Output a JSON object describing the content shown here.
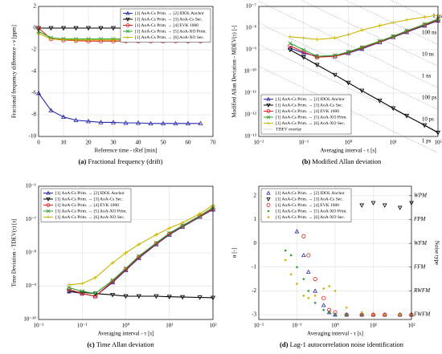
{
  "chart_data": [
    {
      "type": "line",
      "caption_label": "(a)",
      "caption": "Fractional frequency (drift)",
      "xlabel": "Reference time - tRef [min]",
      "ylabel": "Fractional frequency difference - ν [ppm]",
      "xscale": "linear",
      "yscale": "linear",
      "grid": true,
      "legend": "upper right",
      "xlim": [
        0,
        70
      ],
      "xticks": [
        0,
        10,
        20,
        30,
        40,
        50,
        60,
        70
      ],
      "ylim": [
        -10,
        2
      ],
      "yticks": [
        -10,
        -8,
        -6,
        -4,
        -2,
        0,
        2
      ],
      "x": [
        0,
        5,
        10,
        15,
        20,
        25,
        30,
        35,
        40,
        45,
        50,
        55,
        60,
        65
      ],
      "series": [
        {
          "name": "[1] AoA-Cs Prim. → [2] IDOL Anchor",
          "color": "#2a2aa8",
          "marker": "triangle-up",
          "values": [
            -6,
            -7.6,
            -8.2,
            -8.5,
            -8.6,
            -8.7,
            -8.7,
            -8.75,
            -8.75,
            -8.8,
            -8.8,
            -8.8,
            -8.8,
            -8.8
          ]
        },
        {
          "name": "[1] AoA-Cs Prim. → [3] AoA-Cs Sec.",
          "color": "#000000",
          "marker": "triangle-down",
          "values": [
            0,
            0,
            0,
            0,
            0,
            0,
            0,
            0,
            0,
            0,
            0,
            0,
            0,
            0
          ]
        },
        {
          "name": "[1] AoA-Cs Prim. → [4] EVK 1000",
          "color": "#e0201b",
          "marker": "circle",
          "values": [
            0,
            -1,
            -1.1,
            -1.15,
            -1.2,
            -1.2,
            -1.2,
            -1.2,
            -1.2,
            -1.2,
            -1.2,
            -1.2,
            -1.2,
            -1.2
          ]
        },
        {
          "name": "[1] AoA-Cs Prim. → [5] AoA-XO Prim.",
          "color": "#2ca02c",
          "marker": "x",
          "values": [
            -0.3,
            -0.9,
            -1,
            -1,
            -1,
            -1,
            -1,
            -1,
            -1,
            -1,
            -1,
            -1,
            -1,
            -1
          ]
        },
        {
          "name": "[1] AoA-Cs Prim. → [6] AoA-XO Sec.",
          "color": "#c8b400",
          "marker": "plus",
          "values": [
            -0.5,
            -1,
            -1.05,
            -1.1,
            -1.1,
            -1.1,
            -1.1,
            -1.1,
            -1.1,
            -1.1,
            -1.1,
            -1.1,
            -1.1,
            -1.1
          ]
        }
      ]
    },
    {
      "type": "line",
      "caption_label": "(b)",
      "caption": "Modified Allan deviation",
      "xlabel": "Averaging interval - τ [s]",
      "ylabel": "Modified Allan Deviation - MDEV(τ) [-]",
      "xscale": "log",
      "yscale": "log",
      "grid": true,
      "legend": "lower left",
      "xlim": [
        0.01,
        100
      ],
      "xticks": [
        {
          "value": 0.01,
          "label": "10⁻²"
        },
        {
          "value": 0.1,
          "label": "10⁻¹"
        },
        {
          "value": 1,
          "label": "10⁰"
        },
        {
          "value": 10,
          "label": "10¹"
        },
        {
          "value": 100,
          "label": "10²"
        }
      ],
      "ylim": [
        1e-13,
        1e-07
      ],
      "yticks": [
        {
          "value": 1e-13,
          "label": "10⁻¹³"
        },
        {
          "value": 1e-12,
          "label": "10⁻¹²"
        },
        {
          "value": 1e-11,
          "label": "10⁻¹¹"
        },
        {
          "value": 1e-10,
          "label": "10⁻¹⁰"
        },
        {
          "value": 1e-09,
          "label": "10⁻⁹"
        },
        {
          "value": 1e-08,
          "label": "10⁻⁸"
        },
        {
          "value": 1e-07,
          "label": "10⁻⁷"
        }
      ],
      "x": [
        0.05,
        0.1,
        0.2,
        0.5,
        1,
        2,
        5,
        10,
        20,
        50,
        100
      ],
      "tdev_overlay": {
        "name": "TDEV overlay",
        "levels": [
          {
            "value": 1e-06,
            "label": "1 µs"
          },
          {
            "value": 1e-07,
            "label": "100 ns"
          },
          {
            "value": 1e-08,
            "label": "10 ns"
          },
          {
            "value": 1e-09,
            "label": "1 ns"
          },
          {
            "value": 1e-10,
            "label": "100 ps"
          },
          {
            "value": 1e-11,
            "label": "10 ps"
          },
          {
            "value": 1e-12,
            "label": "1 ps"
          }
        ]
      },
      "series": [
        {
          "name": "[1] AoA-Cs Prim. → [2] IDOL Anchor",
          "color": "#2a2aa8",
          "marker": "triangle-up",
          "values": [
            1.2e-09,
            7e-10,
            5e-10,
            5e-10,
            7e-10,
            1.1e-09,
            2.2e-09,
            3.8e-09,
            6.5e-09,
            1.3e-08,
            2.2e-08
          ]
        },
        {
          "name": "[1] AoA-Cs Prim. → [3] AoA-Cs Sec.",
          "color": "#000000",
          "marker": "triangle-down",
          "values": [
            1e-09,
            4.5e-10,
            2e-10,
            7e-11,
            3e-11,
            1.3e-11,
            4.5e-12,
            2e-12,
            9e-13,
            3.3e-13,
            1.5e-13
          ]
        },
        {
          "name": "[1] AoA-Cs Prim. → [4] EVK 1000",
          "color": "#e0201b",
          "marker": "circle",
          "values": [
            1.5e-09,
            8e-10,
            4.5e-10,
            5e-10,
            7.5e-10,
            1.2e-09,
            2.3e-09,
            4e-09,
            7e-09,
            1.4e-08,
            2.4e-08
          ]
        },
        {
          "name": "[1] AoA-Cs Prim. → [5] AoA-XO Prim.",
          "color": "#2ca02c",
          "marker": "x",
          "values": [
            2e-09,
            1e-09,
            5e-10,
            5.5e-10,
            8e-10,
            1.3e-09,
            2.5e-09,
            4.2e-09,
            7.5e-09,
            1.5e-08,
            2.6e-08
          ]
        },
        {
          "name": "[1] AoA-Cs Prim. → [6] AoA-XO Sec.",
          "color": "#c8b400",
          "marker": "plus",
          "values": [
            4e-09,
            3.5e-09,
            3e-09,
            3.5e-09,
            5e-09,
            8e-09,
            1.3e-08,
            1.8e-08,
            2.4e-08,
            3.2e-08,
            4e-08
          ]
        }
      ]
    },
    {
      "type": "line",
      "caption_label": "(c)",
      "caption": "Time Allan deviation",
      "xlabel": "Averaging interval - τ [s]",
      "ylabel": "Time Deviation - TDEV(τ) [s]",
      "xscale": "log",
      "yscale": "log",
      "grid": true,
      "legend": "upper left",
      "xlim": [
        0.01,
        100
      ],
      "xticks": [
        {
          "value": 0.01,
          "label": "10⁻²"
        },
        {
          "value": 0.1,
          "label": "10⁻¹"
        },
        {
          "value": 1,
          "label": "10⁰"
        },
        {
          "value": 10,
          "label": "10¹"
        },
        {
          "value": 100,
          "label": "10²"
        }
      ],
      "ylim": [
        1e-10,
        1e-06
      ],
      "yticks": [
        {
          "value": 1e-10,
          "label": "10⁻¹⁰"
        },
        {
          "value": 1e-09,
          "label": "10⁻⁹"
        },
        {
          "value": 1e-08,
          "label": "10⁻⁸"
        },
        {
          "value": 1e-07,
          "label": "10⁻⁷"
        },
        {
          "value": 1e-06,
          "label": "10⁻⁶"
        }
      ],
      "x": [
        0.05,
        0.1,
        0.2,
        0.5,
        1,
        2,
        5,
        10,
        20,
        50,
        100
      ],
      "series": [
        {
          "name": "[1] AoA-Cs Prim. → [2] IDOL Anchor",
          "color": "#2a2aa8",
          "marker": "triangle-up",
          "values": [
            7e-10,
            6e-10,
            5e-10,
            1.3e-09,
            3e-09,
            7e-09,
            1.8e-08,
            3.5e-08,
            6e-08,
            1.2e-07,
            2e-07
          ]
        },
        {
          "name": "[1] AoA-Cs Prim. → [3] AoA-Cs Sec.",
          "color": "#000000",
          "marker": "triangle-down",
          "values": [
            7e-10,
            6.5e-10,
            6e-10,
            5.5e-10,
            5e-10,
            5e-10,
            5e-10,
            4.8e-10,
            4.7e-10,
            4.6e-10,
            4.5e-10
          ]
        },
        {
          "name": "[1] AoA-Cs Prim. → [4] EVK 1000",
          "color": "#e0201b",
          "marker": "circle",
          "values": [
            8e-10,
            6e-10,
            5e-10,
            1.4e-09,
            3.2e-09,
            7.5e-09,
            1.9e-08,
            3.7e-08,
            6.3e-08,
            1.25e-07,
            2.1e-07
          ]
        },
        {
          "name": "[1] AoA-Cs Prim. → [5] AoA-XO Prim.",
          "color": "#2ca02c",
          "marker": "x",
          "values": [
            9e-10,
            7e-10,
            6e-10,
            1.5e-09,
            3.4e-09,
            8e-09,
            2e-08,
            3.9e-08,
            6.6e-08,
            1.3e-07,
            2.3e-07
          ]
        },
        {
          "name": "[1] AoA-Cs Prim. → [6] AoA-XO Sec.",
          "color": "#c8b400",
          "marker": "plus",
          "values": [
            1.1e-09,
            1.2e-09,
            1.8e-09,
            5e-09,
            1e-08,
            1.8e-08,
            3.5e-08,
            5.5e-08,
            8e-08,
            1.5e-07,
            2.7e-07
          ]
        }
      ]
    },
    {
      "type": "scatter",
      "caption_label": "(d)",
      "caption": "Lag-1 autocorrelation noise identification",
      "xlabel": "Averaging interval - τ [s]",
      "ylabel": "α [-]",
      "y2label": "Noise type",
      "xscale": "log",
      "yscale": "linear",
      "grid": true,
      "legend": "upper left",
      "xlim": [
        0.01,
        100
      ],
      "xticks": [
        {
          "value": 0.01,
          "label": "10⁻²"
        },
        {
          "value": 0.1,
          "label": "10⁻¹"
        },
        {
          "value": 1,
          "label": "10⁰"
        },
        {
          "value": 10,
          "label": "10¹"
        },
        {
          "value": 100,
          "label": "10²"
        }
      ],
      "ylim": [
        -3.2,
        2.4
      ],
      "yticks": [
        -3,
        -2,
        -1,
        0,
        1,
        2
      ],
      "y2lim": [
        -3.2,
        2.4
      ],
      "y2ticks": [
        {
          "value": 2,
          "label": "WPM"
        },
        {
          "value": 1,
          "label": "FPM"
        },
        {
          "value": 0,
          "label": "WFM"
        },
        {
          "value": -1,
          "label": "FFM"
        },
        {
          "value": -2,
          "label": "RWFM"
        },
        {
          "value": -3,
          "label": "FWFM"
        }
      ],
      "x": [
        0.05,
        0.07,
        0.1,
        0.15,
        0.2,
        0.3,
        0.5,
        0.7,
        1,
        2,
        5,
        10,
        20,
        50,
        100
      ],
      "series": [
        {
          "name": "[1] AoA-Cs Prim. → [2] IDOL Anchor",
          "color": "#2a2aa8",
          "marker": "triangle-up",
          "values": [
            1.6,
            1.2,
            0.5,
            -0.5,
            -1.2,
            -2,
            -2.6,
            -2.9,
            -3,
            -3,
            -3,
            -3,
            -3,
            -3,
            -3
          ]
        },
        {
          "name": "[1] AoA-Cs Prim. → [3] AoA-Cs Sec.",
          "color": "#000000",
          "marker": "triangle-down",
          "values": [
            1.9,
            1.5,
            1.6,
            1.7,
            1.5,
            1.6,
            1.7,
            1.6,
            1.5,
            1.6,
            1.6,
            1.7,
            1.6,
            1.5,
            1.7
          ]
        },
        {
          "name": "[1] AoA-Cs Prim. → [4] EVK 1000",
          "color": "#e0201b",
          "marker": "circle",
          "values": [
            2,
            1.5,
            1,
            0.3,
            -0.5,
            -1.5,
            -2.3,
            -2.8,
            -2.9,
            -3,
            -3,
            -3,
            -3,
            -3,
            -3
          ]
        },
        {
          "name": "[1] AoA-Cs Prim. → [5] AoA-XO Prim.",
          "color": "#2ca02c",
          "marker": "dot",
          "values": [
            -0.3,
            -0.5,
            -1,
            -1.5,
            -2,
            -2.5,
            -2.8,
            -2.9,
            -3,
            -3,
            -3,
            -3,
            -3,
            -3,
            -3
          ]
        },
        {
          "name": "[1] AoA-Cs Prim. → [6] AoA-XO Sec.",
          "color": "#c8b400",
          "marker": "dot",
          "values": [
            -0.7,
            -1.3,
            -1.7,
            -2.2,
            -2.3,
            -2.2,
            -1.9,
            -1.8,
            -2,
            -2.7,
            -2.9,
            -3,
            -3,
            -3,
            -3
          ]
        }
      ]
    }
  ]
}
